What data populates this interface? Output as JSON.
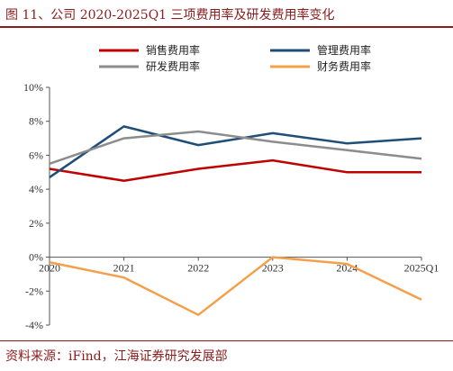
{
  "title": "图 11、公司 2020-2025Q1 三项费用率及研发费用率变化",
  "source": "资料来源：iFind，江海证券研究发展部",
  "colors": {
    "销售费用率": "#c00000",
    "管理费用率": "#1f4e79",
    "研发费用率": "#8c8c8c",
    "财务费用率": "#f4a04b",
    "accent": "#8b1c1c"
  },
  "chart_data": {
    "type": "line",
    "title": "",
    "xlabel": "",
    "ylabel": "",
    "categories": [
      "2020",
      "2021",
      "2022",
      "2023",
      "2024",
      "2025Q1"
    ],
    "ylim": [
      -4,
      10
    ],
    "yticks": [
      "10%",
      "8%",
      "6%",
      "4%",
      "2%",
      "0%",
      "-2%",
      "-4%"
    ],
    "ytick_values": [
      10,
      8,
      6,
      4,
      2,
      0,
      -2,
      -4
    ],
    "grid": false,
    "legend_position": "top",
    "series": [
      {
        "name": "销售费用率",
        "values": [
          5.2,
          4.5,
          5.2,
          5.7,
          5.0,
          5.0
        ]
      },
      {
        "name": "管理费用率",
        "values": [
          4.7,
          7.7,
          6.6,
          7.3,
          6.7,
          7.0
        ]
      },
      {
        "name": "研发费用率",
        "values": [
          5.5,
          7.0,
          7.4,
          6.8,
          6.3,
          5.8
        ]
      },
      {
        "name": "财务费用率",
        "values": [
          -0.3,
          -1.2,
          -3.4,
          0.0,
          -0.4,
          -2.5
        ]
      }
    ]
  }
}
